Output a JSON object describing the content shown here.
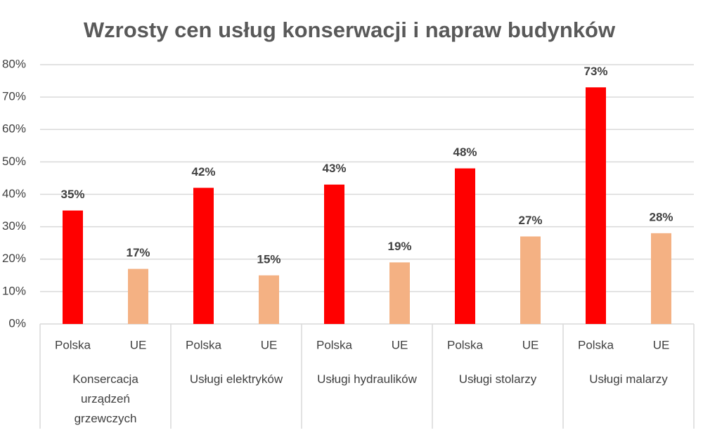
{
  "chart_data": {
    "type": "grouped-bar",
    "title": "Wzrosty cen usług konserwacji i napraw budynków",
    "categories": [
      "Konsercacja urządzeń grzewczych",
      "Usługi elektryków",
      "Usługi hydraulików",
      "Usługi stolarzy",
      "Usługi malarzy"
    ],
    "series": [
      {
        "name": "Polska",
        "color": "#ff0000",
        "values": [
          35,
          42,
          43,
          48,
          73
        ],
        "value_labels": [
          "35%",
          "42%",
          "43%",
          "48%",
          "73%"
        ]
      },
      {
        "name": "UE",
        "color": "#f4b183",
        "values": [
          17,
          15,
          19,
          27,
          28
        ],
        "value_labels": [
          "17%",
          "15%",
          "19%",
          "27%",
          "28%"
        ]
      }
    ],
    "ylim": [
      0,
      80
    ],
    "yticks": [
      {
        "value": 0,
        "label": "0%"
      },
      {
        "value": 10,
        "label": "10%"
      },
      {
        "value": 20,
        "label": "20%"
      },
      {
        "value": 30,
        "label": "30%"
      },
      {
        "value": 40,
        "label": "40%"
      },
      {
        "value": 50,
        "label": "50%"
      },
      {
        "value": 60,
        "label": "60%"
      },
      {
        "value": 70,
        "label": "70%"
      },
      {
        "value": 80,
        "label": "80%"
      }
    ],
    "grid": true
  }
}
